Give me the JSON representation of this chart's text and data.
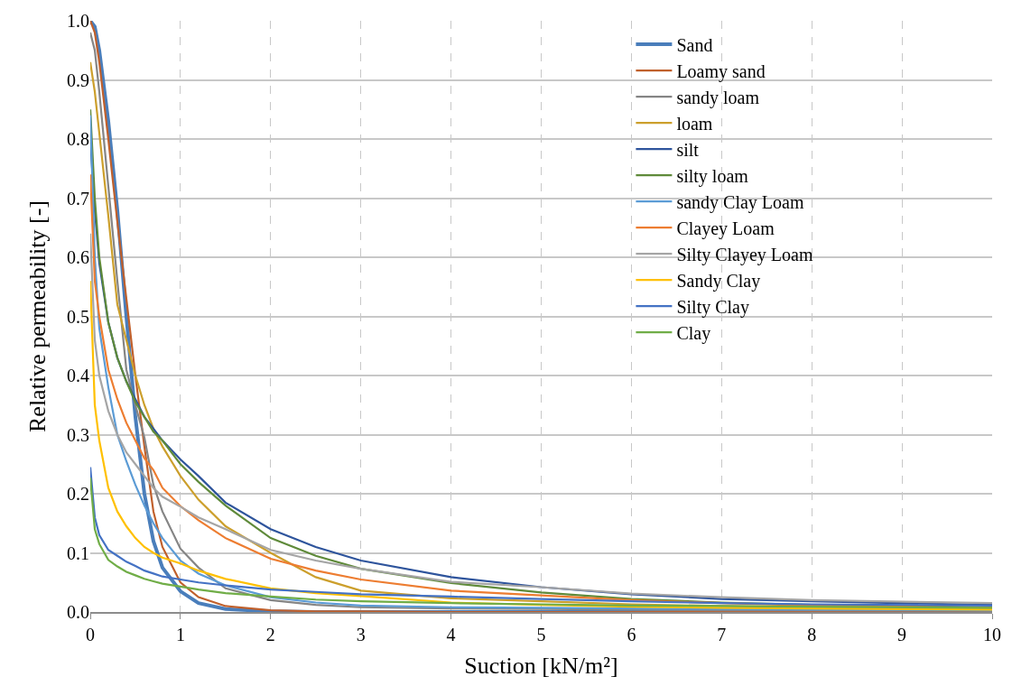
{
  "chart_data": {
    "type": "line",
    "xlabel": "Suction [kN/m²]",
    "ylabel": "Relative permeability [-]",
    "x": [
      0,
      0.05,
      0.1,
      0.2,
      0.3,
      0.4,
      0.5,
      0.6,
      0.7,
      0.8,
      1,
      1.2,
      1.5,
      2,
      2.5,
      3,
      4,
      5,
      6,
      7,
      8,
      10
    ],
    "xlim": [
      0,
      10
    ],
    "xticks": [
      0,
      1,
      2,
      3,
      4,
      5,
      6,
      7,
      8,
      9,
      10
    ],
    "ylim": [
      0,
      1
    ],
    "yticks": [
      {
        "value": 0,
        "label": "0.0"
      },
      {
        "value": 0.1,
        "label": "0.1"
      },
      {
        "value": 0.2,
        "label": "0.2"
      },
      {
        "value": 0.3,
        "label": "0.3"
      },
      {
        "value": 0.4,
        "label": "0.4"
      },
      {
        "value": 0.5,
        "label": "0.5"
      },
      {
        "value": 0.6,
        "label": "0.6"
      },
      {
        "value": 0.7,
        "label": "0.7"
      },
      {
        "value": 0.8,
        "label": "0.8"
      },
      {
        "value": 0.9,
        "label": "0.9"
      },
      {
        "value": 1,
        "label": "1.0"
      }
    ],
    "grid": true,
    "legend": "top right",
    "marker": "none",
    "line_style": "solid",
    "series": [
      {
        "name": "Sand",
        "color": "#4a7ebb",
        "values": [
          1,
          0.99,
          0.95,
          0.83,
          0.68,
          0.5,
          0.33,
          0.2,
          0.12,
          0.075,
          0.035,
          0.015,
          0.005,
          0.001,
          0,
          0,
          0,
          0,
          0,
          0,
          0,
          0
        ]
      },
      {
        "name": "Loamy sand",
        "color": "#c0602c",
        "values": [
          1,
          0.98,
          0.93,
          0.8,
          0.66,
          0.53,
          0.4,
          0.28,
          0.17,
          0.11,
          0.05,
          0.025,
          0.01,
          0.003,
          0.001,
          0.001,
          0,
          0,
          0,
          0,
          0,
          0
        ]
      },
      {
        "name": "sandy loam",
        "color": "#858585",
        "values": [
          0.98,
          0.95,
          0.88,
          0.72,
          0.56,
          0.41,
          0.35,
          0.295,
          0.215,
          0.17,
          0.107,
          0.075,
          0.04,
          0.02,
          0.012,
          0.008,
          0.006,
          0.005,
          0.004,
          0.003,
          0.003,
          0.002
        ]
      },
      {
        "name": "loam",
        "color": "#cc9f2c",
        "values": [
          0.93,
          0.88,
          0.81,
          0.67,
          0.52,
          0.46,
          0.4,
          0.35,
          0.31,
          0.28,
          0.23,
          0.19,
          0.145,
          0.1,
          0.059,
          0.036,
          0.023,
          0.018,
          0.013,
          0.01,
          0.008,
          0.005
        ]
      },
      {
        "name": "silt",
        "color": "#2e549c",
        "values": [
          0.8,
          0.68,
          0.59,
          0.49,
          0.43,
          0.39,
          0.36,
          0.33,
          0.31,
          0.29,
          0.258,
          0.23,
          0.185,
          0.14,
          0.11,
          0.087,
          0.059,
          0.042,
          0.03,
          0.022,
          0.018,
          0.012
        ]
      },
      {
        "name": "silty loam",
        "color": "#5f8a3a",
        "values": [
          0.85,
          0.7,
          0.6,
          0.49,
          0.43,
          0.39,
          0.355,
          0.33,
          0.305,
          0.29,
          0.25,
          0.22,
          0.18,
          0.125,
          0.095,
          0.073,
          0.049,
          0.033,
          0.022,
          0.016,
          0.012,
          0.008
        ]
      },
      {
        "name": "sandy Clay Loam",
        "color": "#5b9bd5",
        "values": [
          0.84,
          0.6,
          0.48,
          0.38,
          0.3,
          0.255,
          0.215,
          0.18,
          0.15,
          0.125,
          0.087,
          0.065,
          0.045,
          0.025,
          0.016,
          0.011,
          0.008,
          0.007,
          0.006,
          0.005,
          0.004,
          0.003
        ]
      },
      {
        "name": "Clayey Loam",
        "color": "#ed7d31",
        "values": [
          0.74,
          0.56,
          0.5,
          0.41,
          0.36,
          0.32,
          0.29,
          0.26,
          0.24,
          0.21,
          0.179,
          0.155,
          0.125,
          0.09,
          0.07,
          0.055,
          0.036,
          0.028,
          0.02,
          0.015,
          0.011,
          0.007
        ]
      },
      {
        "name": "Silty Clayey Loam",
        "color": "#a5a5a5",
        "values": [
          0.64,
          0.46,
          0.4,
          0.34,
          0.3,
          0.27,
          0.25,
          0.23,
          0.21,
          0.195,
          0.178,
          0.16,
          0.14,
          0.105,
          0.087,
          0.073,
          0.051,
          0.042,
          0.031,
          0.025,
          0.02,
          0.015
        ]
      },
      {
        "name": "Sandy Clay",
        "color": "#ffc000",
        "values": [
          0.56,
          0.35,
          0.29,
          0.21,
          0.17,
          0.145,
          0.125,
          0.11,
          0.1,
          0.092,
          0.082,
          0.07,
          0.056,
          0.04,
          0.032,
          0.027,
          0.016,
          0.012,
          0.009,
          0.007,
          0.006,
          0.004
        ]
      },
      {
        "name": "Silty Clay",
        "color": "#4472c4",
        "values": [
          0.245,
          0.16,
          0.13,
          0.105,
          0.095,
          0.085,
          0.078,
          0.07,
          0.065,
          0.06,
          0.055,
          0.05,
          0.045,
          0.038,
          0.034,
          0.03,
          0.026,
          0.022,
          0.018,
          0.015,
          0.013,
          0.011
        ]
      },
      {
        "name": "Clay",
        "color": "#70ad47",
        "values": [
          0.227,
          0.14,
          0.115,
          0.088,
          0.077,
          0.068,
          0.062,
          0.056,
          0.052,
          0.048,
          0.043,
          0.038,
          0.032,
          0.026,
          0.021,
          0.018,
          0.015,
          0.013,
          0.011,
          0.01,
          0.009,
          0.007
        ]
      }
    ]
  }
}
